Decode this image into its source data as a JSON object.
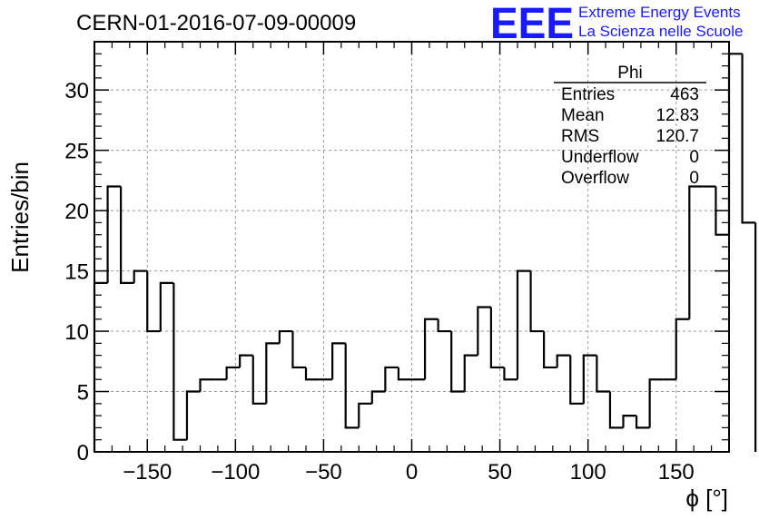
{
  "chart_data": {
    "type": "bar",
    "title": "CERN-01-2016-07-09-00009",
    "xlabel": "ϕ [°]",
    "ylabel": "Entries/bin",
    "xlim": [
      -180,
      180
    ],
    "ylim": [
      0,
      34
    ],
    "grid": true,
    "bin_width": 7.5,
    "bin_edges_start": -180,
    "values": [
      14,
      22,
      14,
      15,
      10,
      14,
      1,
      5,
      6,
      6,
      7,
      8,
      4,
      9,
      10,
      7,
      6,
      6,
      9,
      2,
      4,
      5,
      7,
      6,
      6,
      11,
      10,
      5,
      8,
      12,
      7,
      6,
      15,
      10,
      7,
      8,
      4,
      8,
      5,
      2,
      3,
      2,
      6,
      6,
      11,
      22,
      22,
      18,
      33,
      19
    ],
    "x_ticks": [
      -150,
      -100,
      -50,
      0,
      50,
      100,
      150
    ],
    "x_tick_labels": [
      "−150",
      "−100",
      "−50",
      "0",
      "50",
      "100",
      "150"
    ],
    "y_ticks": [
      0,
      5,
      10,
      15,
      20,
      25,
      30
    ],
    "y_tick_labels": [
      "0",
      "5",
      "10",
      "15",
      "20",
      "25",
      "30"
    ],
    "stats": {
      "name": "Phi",
      "rows": [
        {
          "label": "Entries",
          "value": "463"
        },
        {
          "label": "Mean",
          "value": "12.83"
        },
        {
          "label": "RMS",
          "value": "120.7"
        },
        {
          "label": "Underflow",
          "value": "0"
        },
        {
          "label": "Overflow",
          "value": "0"
        }
      ]
    },
    "logo": {
      "mark": "EEE",
      "line1": "Extreme Energy Events",
      "line2": "La Scienza nelle Scuole",
      "color": "#1a1aff"
    }
  }
}
